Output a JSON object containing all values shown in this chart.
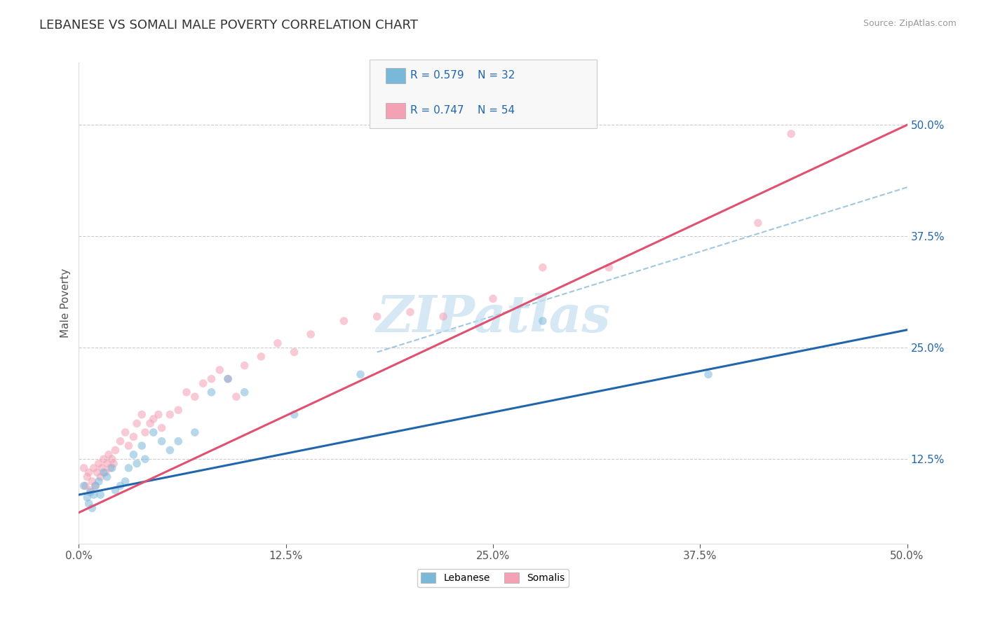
{
  "title": "LEBANESE VS SOMALI MALE POVERTY CORRELATION CHART",
  "source_text": "Source: ZipAtlas.com",
  "xlabel": "",
  "ylabel": "Male Poverty",
  "xlim": [
    0.0,
    0.5
  ],
  "ylim": [
    0.03,
    0.57
  ],
  "xtick_labels": [
    "0.0%",
    "12.5%",
    "25.0%",
    "37.5%",
    "50.0%"
  ],
  "xtick_values": [
    0.0,
    0.125,
    0.25,
    0.375,
    0.5
  ],
  "ytick_labels": [
    "12.5%",
    "25.0%",
    "37.5%",
    "50.0%"
  ],
  "ytick_values": [
    0.125,
    0.25,
    0.375,
    0.5
  ],
  "color_lebanese": "#7ab8d9",
  "color_somali": "#f4a0b5",
  "color_line_lebanese": "#2166ac",
  "color_line_somali": "#e05070",
  "color_dash": "#8ab8d9",
  "watermark_text": "ZIPatlas",
  "watermark_color": "#c5dff0",
  "grid_color": "#cccccc",
  "background_color": "#ffffff",
  "title_fontsize": 13,
  "axis_label_fontsize": 11,
  "tick_fontsize": 11,
  "marker_size": 70,
  "marker_alpha": 0.55,
  "leb_line_x0": 0.0,
  "leb_line_y0": 0.085,
  "leb_line_x1": 0.5,
  "leb_line_y1": 0.27,
  "som_line_x0": 0.0,
  "som_line_y0": 0.065,
  "som_line_x1": 0.5,
  "som_line_y1": 0.5,
  "dash_line_x0": 0.18,
  "dash_line_y0": 0.245,
  "dash_line_x1": 0.5,
  "dash_line_y1": 0.43,
  "lebanese_x": [
    0.003,
    0.005,
    0.006,
    0.007,
    0.008,
    0.009,
    0.01,
    0.012,
    0.013,
    0.015,
    0.017,
    0.02,
    0.022,
    0.025,
    0.028,
    0.03,
    0.033,
    0.035,
    0.038,
    0.04,
    0.045,
    0.05,
    0.055,
    0.06,
    0.07,
    0.08,
    0.09,
    0.1,
    0.13,
    0.17,
    0.28,
    0.38
  ],
  "lebanese_y": [
    0.095,
    0.082,
    0.075,
    0.088,
    0.07,
    0.085,
    0.095,
    0.1,
    0.085,
    0.11,
    0.105,
    0.115,
    0.09,
    0.095,
    0.1,
    0.115,
    0.13,
    0.12,
    0.14,
    0.125,
    0.155,
    0.145,
    0.135,
    0.145,
    0.155,
    0.2,
    0.215,
    0.2,
    0.175,
    0.22,
    0.28,
    0.22
  ],
  "somali_x": [
    0.003,
    0.004,
    0.005,
    0.006,
    0.007,
    0.008,
    0.009,
    0.01,
    0.011,
    0.012,
    0.013,
    0.014,
    0.015,
    0.016,
    0.017,
    0.018,
    0.019,
    0.02,
    0.021,
    0.022,
    0.025,
    0.028,
    0.03,
    0.033,
    0.035,
    0.038,
    0.04,
    0.043,
    0.045,
    0.048,
    0.05,
    0.055,
    0.06,
    0.065,
    0.07,
    0.075,
    0.08,
    0.085,
    0.09,
    0.095,
    0.1,
    0.11,
    0.12,
    0.13,
    0.14,
    0.16,
    0.18,
    0.2,
    0.22,
    0.25,
    0.28,
    0.32,
    0.41,
    0.43
  ],
  "somali_y": [
    0.115,
    0.095,
    0.105,
    0.11,
    0.09,
    0.1,
    0.115,
    0.095,
    0.11,
    0.12,
    0.105,
    0.115,
    0.125,
    0.11,
    0.12,
    0.13,
    0.115,
    0.125,
    0.12,
    0.135,
    0.145,
    0.155,
    0.14,
    0.15,
    0.165,
    0.175,
    0.155,
    0.165,
    0.17,
    0.175,
    0.16,
    0.175,
    0.18,
    0.2,
    0.195,
    0.21,
    0.215,
    0.225,
    0.215,
    0.195,
    0.23,
    0.24,
    0.255,
    0.245,
    0.265,
    0.28,
    0.285,
    0.29,
    0.285,
    0.305,
    0.34,
    0.34,
    0.39,
    0.49
  ]
}
